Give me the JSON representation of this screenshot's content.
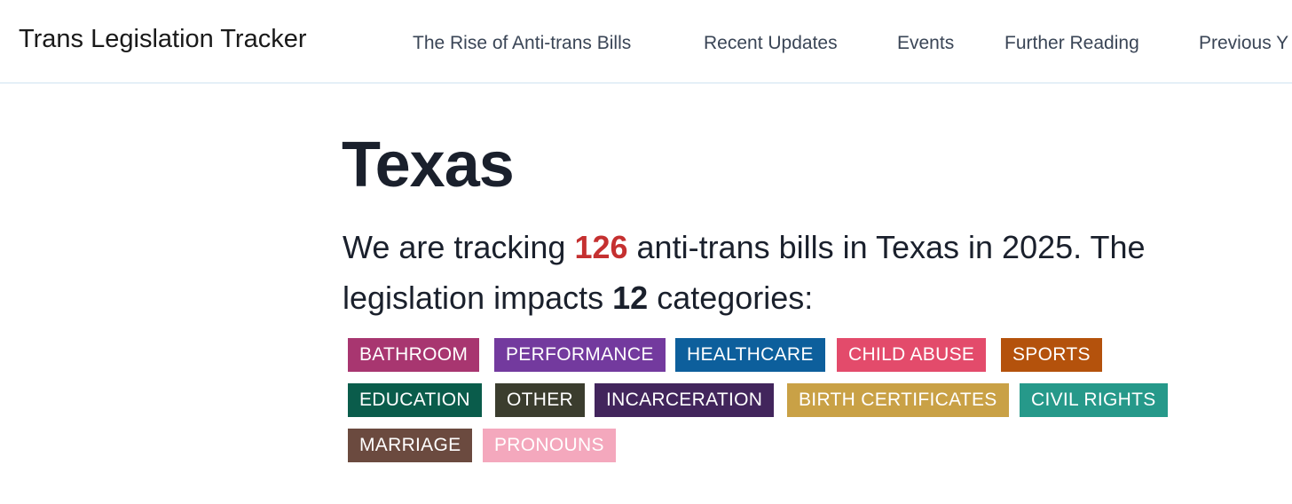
{
  "nav": {
    "brand": "Trans Legislation Tracker",
    "links": [
      "The Rise of Anti-trans Bills",
      "Recent Updates",
      "Events",
      "Further Reading",
      "Previous Y"
    ]
  },
  "state": {
    "name": "Texas"
  },
  "summary": {
    "prefix": "We are tracking ",
    "bill_count": "126",
    "middle": " anti-trans bills in Texas in 2025. The legislation impacts ",
    "category_count": "12",
    "suffix": " categories:"
  },
  "categories": [
    {
      "label": "BATHROOM",
      "color": "#a83670"
    },
    {
      "label": "PERFORMANCE",
      "color": "#733a9e"
    },
    {
      "label": "HEALTHCARE",
      "color": "#0d5f9c"
    },
    {
      "label": "CHILD ABUSE",
      "color": "#e34b6b"
    },
    {
      "label": "SPORTS",
      "color": "#b4520c"
    },
    {
      "label": "EDUCATION",
      "color": "#0a5c4b"
    },
    {
      "label": "OTHER",
      "color": "#3b3d2e"
    },
    {
      "label": "INCARCERATION",
      "color": "#42255c"
    },
    {
      "label": "BIRTH CERTIFICATES",
      "color": "#c9a146"
    },
    {
      "label": "CIVIL RIGHTS",
      "color": "#26998a"
    },
    {
      "label": "MARRIAGE",
      "color": "#6b4a3f"
    },
    {
      "label": "PRONOUNS",
      "color": "#f4a8bd"
    }
  ]
}
